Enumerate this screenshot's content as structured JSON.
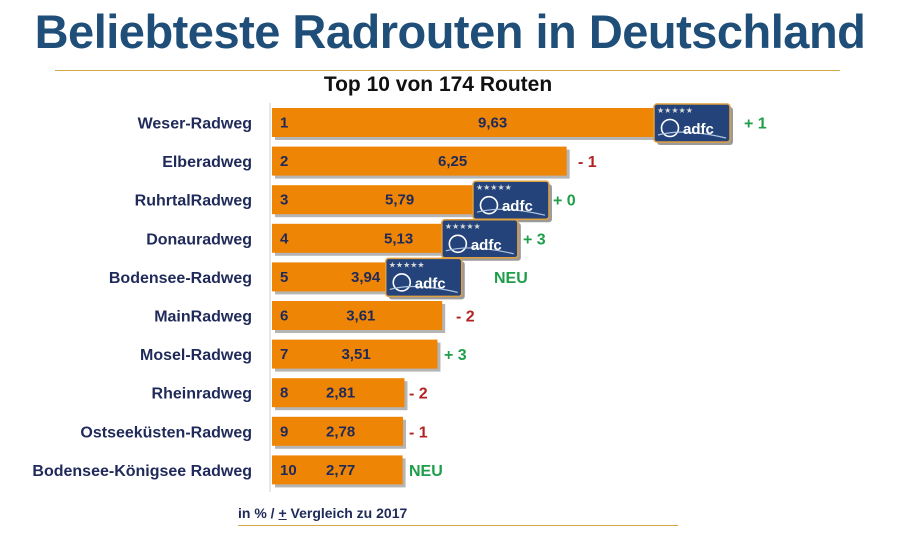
{
  "title": "Beliebteste Radrouten in Deutschland",
  "subtitle": "Top 10 von 174 Routen",
  "footnote": {
    "prefix": "in % / ",
    "pm": "+",
    "suffix": " Vergleich zu 2017"
  },
  "colors": {
    "bar": "#ef8505",
    "title": "#1f4e79",
    "up": "#1e9e4a",
    "down": "#b22222",
    "badge": "#23437a"
  },
  "badge_label": "adfc",
  "badge_icon": "adfc-rating-badge-icon",
  "chart_data": {
    "type": "bar",
    "orientation": "horizontal",
    "categories": [
      "Weser-Radweg",
      "Elberadweg",
      "RuhrtalRadweg",
      "Donauradweg",
      "Bodensee-Radweg",
      "MainRadweg",
      "Mosel-Radweg",
      "Rheinradweg",
      "Ostseeküsten-Radweg",
      "Bodensee-Königsee Radweg"
    ],
    "ranks": [
      "1",
      "2",
      "3",
      "4",
      "5",
      "6",
      "7",
      "8",
      "9",
      "10"
    ],
    "values": [
      9.63,
      6.25,
      5.79,
      5.13,
      3.94,
      3.61,
      3.51,
      2.81,
      2.78,
      2.77
    ],
    "value_labels": [
      "9,63",
      "6,25",
      "5,79",
      "5,13",
      "3,94",
      "3,61",
      "3,51",
      "2,81",
      "2,78",
      "2,77"
    ],
    "changes": [
      "+ 1",
      "- 1",
      "+ 0",
      "+ 3",
      "NEU",
      "- 2",
      "+ 3",
      "- 2",
      "- 1",
      "NEU"
    ],
    "change_types": [
      "up",
      "down",
      "up",
      "up",
      "up",
      "down",
      "up",
      "down",
      "down",
      "up"
    ],
    "adfc_badge": [
      true,
      false,
      true,
      true,
      true,
      false,
      false,
      false,
      false,
      false
    ],
    "xlim": [
      0,
      9.63
    ]
  }
}
